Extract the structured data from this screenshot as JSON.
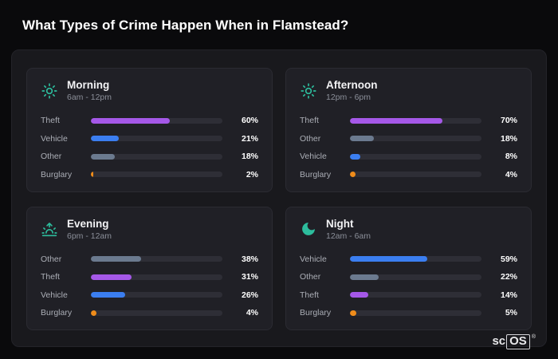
{
  "page": {
    "title": "What Types of Crime Happen When in Flamstead?"
  },
  "brand": {
    "prefix": "sc",
    "boxed": "OS",
    "reg": "®"
  },
  "colors": {
    "theft": "#a558e8",
    "vehicle": "#3b7ef0",
    "other": "#6b7a8f",
    "burglary": "#ef8c1a",
    "icon": "#2dbd9d"
  },
  "chart_data": {
    "type": "bar",
    "title": "What Types of Crime Happen When in Flamstead?",
    "unit": "%",
    "xlim": [
      0,
      100
    ],
    "legend": false,
    "cards": [
      {
        "title": "Morning",
        "subtitle": "6am - 12pm",
        "icon": "sun-icon",
        "rows": [
          {
            "label": "Theft",
            "value": 60,
            "display": "60%",
            "color_key": "theft"
          },
          {
            "label": "Vehicle",
            "value": 21,
            "display": "21%",
            "color_key": "vehicle"
          },
          {
            "label": "Other",
            "value": 18,
            "display": "18%",
            "color_key": "other"
          },
          {
            "label": "Burglary",
            "value": 2,
            "display": "2%",
            "color_key": "burglary"
          }
        ]
      },
      {
        "title": "Afternoon",
        "subtitle": "12pm - 6pm",
        "icon": "sun-icon",
        "rows": [
          {
            "label": "Theft",
            "value": 70,
            "display": "70%",
            "color_key": "theft"
          },
          {
            "label": "Other",
            "value": 18,
            "display": "18%",
            "color_key": "other"
          },
          {
            "label": "Vehicle",
            "value": 8,
            "display": "8%",
            "color_key": "vehicle"
          },
          {
            "label": "Burglary",
            "value": 4,
            "display": "4%",
            "color_key": "burglary"
          }
        ]
      },
      {
        "title": "Evening",
        "subtitle": "6pm - 12am",
        "icon": "sunrise-icon",
        "rows": [
          {
            "label": "Other",
            "value": 38,
            "display": "38%",
            "color_key": "other"
          },
          {
            "label": "Theft",
            "value": 31,
            "display": "31%",
            "color_key": "theft"
          },
          {
            "label": "Vehicle",
            "value": 26,
            "display": "26%",
            "color_key": "vehicle"
          },
          {
            "label": "Burglary",
            "value": 4,
            "display": "4%",
            "color_key": "burglary"
          }
        ]
      },
      {
        "title": "Night",
        "subtitle": "12am - 6am",
        "icon": "moon-icon",
        "rows": [
          {
            "label": "Vehicle",
            "value": 59,
            "display": "59%",
            "color_key": "vehicle"
          },
          {
            "label": "Other",
            "value": 22,
            "display": "22%",
            "color_key": "other"
          },
          {
            "label": "Theft",
            "value": 14,
            "display": "14%",
            "color_key": "theft"
          },
          {
            "label": "Burglary",
            "value": 5,
            "display": "5%",
            "color_key": "burglary"
          }
        ]
      }
    ]
  }
}
